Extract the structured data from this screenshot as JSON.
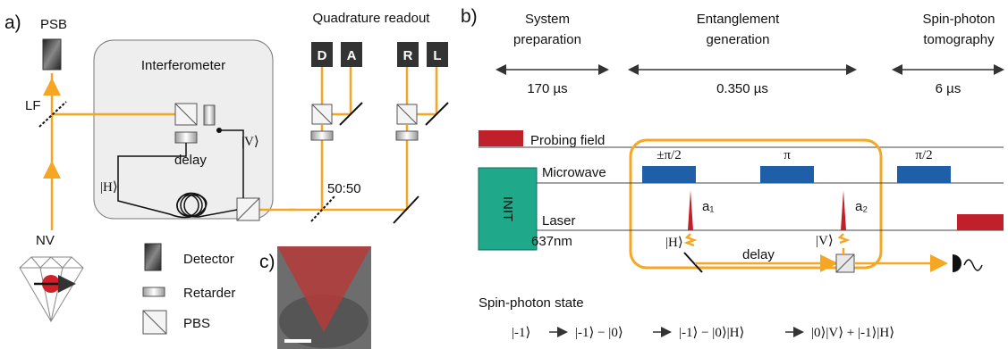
{
  "panel_a": {
    "label": "a)",
    "psb": "PSB",
    "interferometer": "Interferometer",
    "quadrature_readout": "Quadrature readout",
    "detectors": [
      "D",
      "A",
      "R",
      "L"
    ],
    "lf": "LF",
    "ket_v": "|V⟩",
    "ket_h": "|H⟩",
    "delay": "delay",
    "splitter": "50:50",
    "nv": "NV",
    "legend": [
      "Detector",
      "Retarder",
      "PBS"
    ]
  },
  "panel_b": {
    "label": "b)",
    "stages": [
      {
        "title": [
          "System",
          "preparation"
        ],
        "duration": "170 µs"
      },
      {
        "title": [
          "Entanglement",
          "generation"
        ],
        "duration": "0.350 µs"
      },
      {
        "title": [
          "Spin-photon",
          "tomography"
        ],
        "duration": "6 µs"
      }
    ],
    "probing_field": "Probing field",
    "pulses": [
      "±π/2",
      "π",
      "π/2"
    ],
    "microwave": "Microwave",
    "init": "INIT",
    "laser": [
      "Laser",
      "637nm"
    ],
    "peaks": [
      "a₁",
      "a₂"
    ],
    "ket_h": "|H⟩",
    "ket_v": "|V⟩",
    "delay": "delay",
    "state": {
      "title": "Spin-photon state",
      "terms": [
        "|-1⟩",
        "|-1⟩ − |0⟩",
        "|-1⟩ − |0⟩|H⟩",
        "|0⟩|V⟩ + |-1⟩|H⟩"
      ]
    }
  },
  "panel_c": {
    "label": "c)"
  }
}
